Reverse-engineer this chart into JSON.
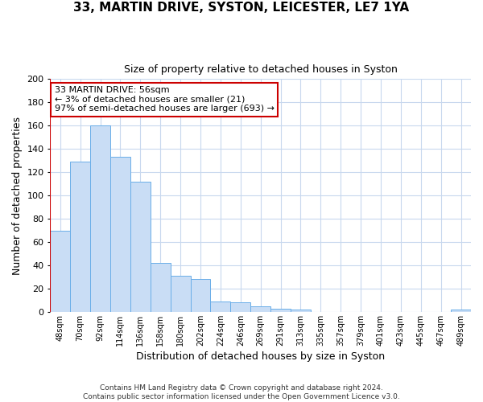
{
  "title": "33, MARTIN DRIVE, SYSTON, LEICESTER, LE7 1YA",
  "subtitle": "Size of property relative to detached houses in Syston",
  "xlabel": "Distribution of detached houses by size in Syston",
  "ylabel": "Number of detached properties",
  "bar_labels": [
    "48sqm",
    "70sqm",
    "92sqm",
    "114sqm",
    "136sqm",
    "158sqm",
    "180sqm",
    "202sqm",
    "224sqm",
    "246sqm",
    "269sqm",
    "291sqm",
    "313sqm",
    "335sqm",
    "357sqm",
    "379sqm",
    "401sqm",
    "423sqm",
    "445sqm",
    "467sqm",
    "489sqm"
  ],
  "bar_values": [
    70,
    129,
    160,
    133,
    112,
    42,
    31,
    28,
    9,
    8,
    5,
    3,
    2,
    0,
    0,
    0,
    0,
    0,
    0,
    0,
    2
  ],
  "bar_color": "#c9ddf5",
  "bar_edge_color": "#6aaee8",
  "ylim": [
    0,
    200
  ],
  "yticks": [
    0,
    20,
    40,
    60,
    80,
    100,
    120,
    140,
    160,
    180,
    200
  ],
  "annotation_title": "33 MARTIN DRIVE: 56sqm",
  "annotation_line1": "← 3% of detached houses are smaller (21)",
  "annotation_line2": "97% of semi-detached houses are larger (693) →",
  "annotation_box_color": "#ffffff",
  "annotation_box_edge": "#cc0000",
  "red_line_color": "#cc0000",
  "footer_line1": "Contains HM Land Registry data © Crown copyright and database right 2024.",
  "footer_line2": "Contains public sector information licensed under the Open Government Licence v3.0.",
  "background_color": "#ffffff",
  "grid_color": "#c8d8ee"
}
